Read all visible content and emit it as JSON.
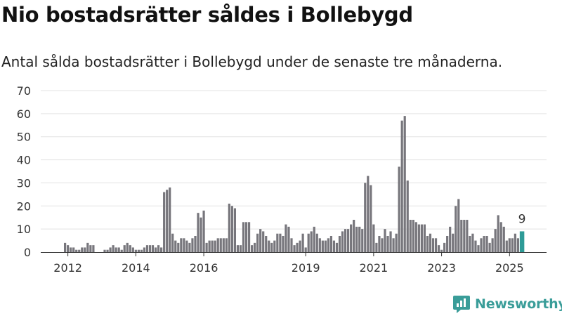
{
  "title": "Nio bostadsrätter såldes i Bollebygd",
  "subtitle": "Antal sålda bostadsrätter i Bollebygd under de senaste tre månaderna.",
  "brand": {
    "name": "Newsworthy"
  },
  "colors": {
    "bar": "#77767c",
    "highlight": "#2e9b97",
    "grid": "#e3e3e3",
    "axis": "#333333",
    "brand": "#3a9d99"
  },
  "chart_data": {
    "type": "bar",
    "title": "Nio bostadsrätter såldes i Bollebygd",
    "subtitle": "Antal sålda bostadsrätter i Bollebygd under de senaste tre månaderna.",
    "xlabel": "",
    "ylabel": "",
    "ylim": [
      0,
      70
    ],
    "yticks": [
      0,
      10,
      20,
      30,
      40,
      50,
      60,
      70
    ],
    "xticks": [
      "2012",
      "2014",
      "2016",
      "2019",
      "2021",
      "2023",
      "2025"
    ],
    "grid": true,
    "legend": "none",
    "first_period": "2011-12",
    "frequency": "monthly",
    "last_value_label": "9",
    "values": [
      4,
      3,
      2,
      2,
      1,
      1,
      2,
      2,
      4,
      3,
      3,
      0,
      0,
      0,
      1,
      1,
      2,
      3,
      2,
      2,
      1,
      3,
      4,
      3,
      2,
      1,
      1,
      1,
      2,
      3,
      3,
      3,
      2,
      3,
      2,
      26,
      27,
      28,
      8,
      5,
      4,
      6,
      6,
      5,
      4,
      6,
      7,
      17,
      15,
      18,
      4,
      5,
      5,
      5,
      6,
      6,
      6,
      6,
      21,
      20,
      19,
      3,
      3,
      13,
      13,
      13,
      3,
      4,
      8,
      10,
      9,
      7,
      5,
      4,
      5,
      8,
      8,
      7,
      12,
      11,
      6,
      3,
      4,
      5,
      8,
      2,
      8,
      9,
      11,
      8,
      6,
      5,
      5,
      6,
      7,
      5,
      4,
      7,
      9,
      10,
      10,
      12,
      14,
      11,
      11,
      10,
      30,
      33,
      29,
      12,
      4,
      7,
      6,
      10,
      7,
      9,
      6,
      8,
      37,
      57,
      59,
      31,
      14,
      14,
      13,
      12,
      12,
      12,
      7,
      8,
      6,
      6,
      3,
      1,
      4,
      7,
      11,
      8,
      20,
      23,
      14,
      14,
      14,
      7,
      8,
      5,
      3,
      6,
      7,
      7,
      4,
      6,
      10,
      16,
      13,
      11,
      5,
      6,
      6,
      8,
      6,
      9
    ]
  }
}
